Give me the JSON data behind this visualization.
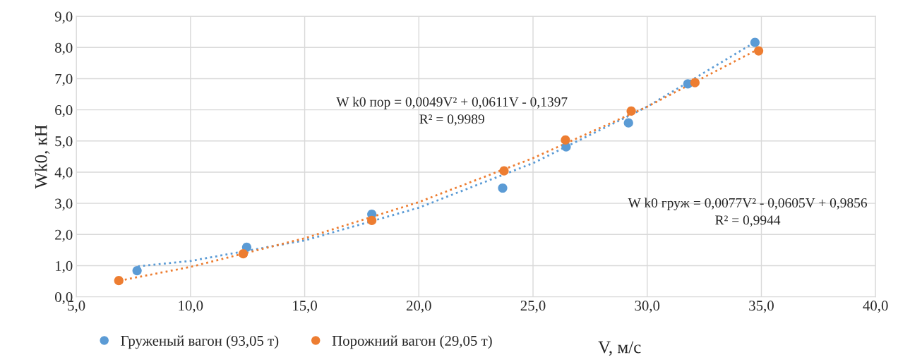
{
  "chart_data": {
    "type": "scatter",
    "xlabel": "V, м/с",
    "ylabel": "Wk0, кН",
    "series": [
      {
        "name": "Груженый вагон (93,05 т)",
        "color": "#5b9bd5",
        "marker": "circle",
        "x": [
          7.66,
          12.46,
          17.94,
          23.67,
          26.45,
          29.18,
          31.78,
          34.72
        ],
        "values": [
          0.84,
          1.59,
          2.65,
          3.49,
          4.81,
          5.58,
          6.83,
          8.16
        ]
      },
      {
        "name": "Порожний вагон (29,05 т)",
        "color": "#ed7d31",
        "marker": "circle",
        "x": [
          6.86,
          12.31,
          17.94,
          23.73,
          26.42,
          29.3,
          32.09,
          34.88
        ],
        "values": [
          0.52,
          1.38,
          2.45,
          4.04,
          5.03,
          5.96,
          6.87,
          7.89
        ]
      },
      {
        "type": "line",
        "color": "#5b9bd5",
        "line_style": "dotted",
        "marker": "none",
        "x": [
          7.7,
          10,
          15,
          20,
          25,
          30,
          34.7
        ],
        "values": [
          0.98,
          1.15,
          1.81,
          2.86,
          4.29,
          6.1,
          8.16
        ]
      },
      {
        "type": "line",
        "color": "#ed7d31",
        "line_style": "dotted",
        "marker": "none",
        "x": [
          6.9,
          10,
          15,
          20,
          25,
          30,
          34.9
        ],
        "values": [
          0.52,
          0.96,
          1.88,
          3.04,
          4.45,
          6.1,
          7.96
        ]
      }
    ],
    "xlim": [
      5,
      40
    ],
    "ylim": [
      0,
      9
    ],
    "xticks": [
      {
        "value": 5,
        "label": "5,0"
      },
      {
        "value": 10,
        "label": "10,0"
      },
      {
        "value": 15,
        "label": "15,0"
      },
      {
        "value": 20,
        "label": "20,0"
      },
      {
        "value": 25,
        "label": "25,0"
      },
      {
        "value": 30,
        "label": "30,0"
      },
      {
        "value": 35,
        "label": "35,0"
      },
      {
        "value": 40,
        "label": "40,0"
      }
    ],
    "yticks": [
      {
        "value": 0,
        "label": "0,0"
      },
      {
        "value": 1,
        "label": "1,0"
      },
      {
        "value": 2,
        "label": "2,0"
      },
      {
        "value": 3,
        "label": "3,0"
      },
      {
        "value": 4,
        "label": "4,0"
      },
      {
        "value": 5,
        "label": "5,0"
      },
      {
        "value": 6,
        "label": "6,0"
      },
      {
        "value": 7,
        "label": "7,0"
      },
      {
        "value": 8,
        "label": "8,0"
      },
      {
        "value": 9,
        "label": "9,0"
      }
    ],
    "grid": true,
    "legend": "bottom left",
    "annotations": [
      "W k0 пор = 0,0049V² + 0,0611V - 0,1397\nR² = 0,9989",
      "W k0 груж = 0,0077V² - 0,0605V + 0,9856\nR² = 0,9944"
    ]
  }
}
